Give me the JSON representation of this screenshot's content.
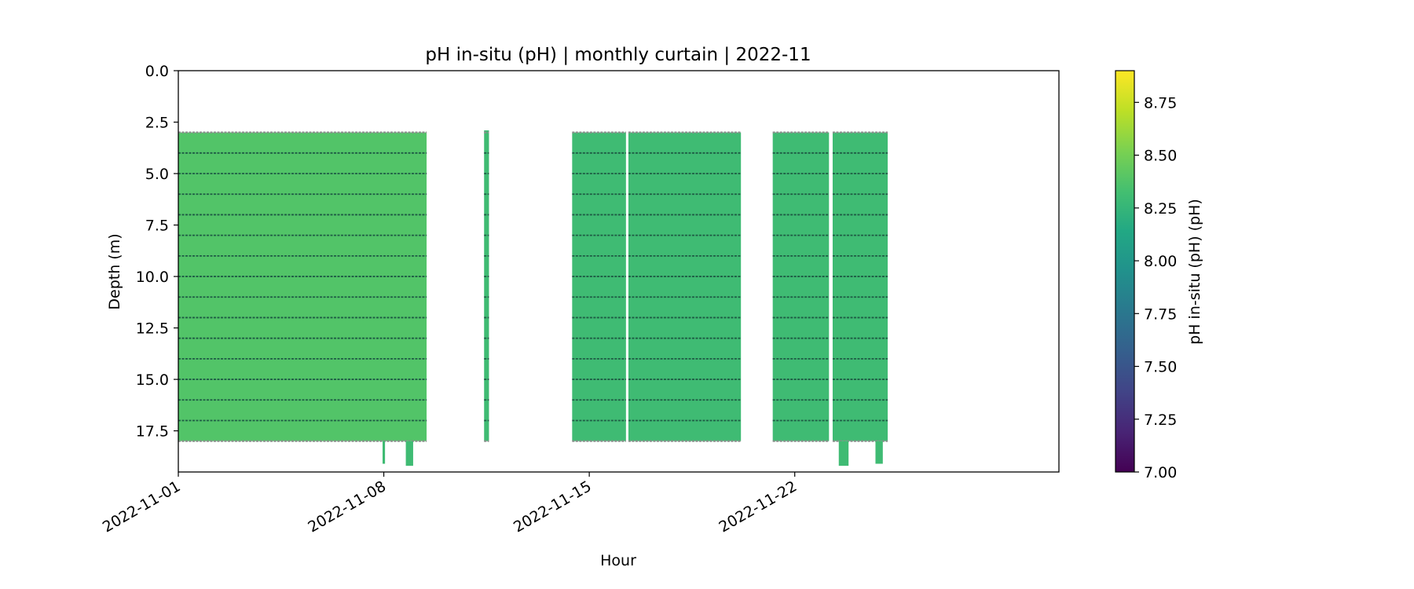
{
  "chart_data": {
    "type": "heatmap",
    "title": "pH in-situ (pH) | monthly curtain | 2022-11",
    "xlabel": "Hour",
    "ylabel": "Depth (m)",
    "x_axis": {
      "range": [
        "2022-11-01",
        "2022-12-01"
      ],
      "ticks": [
        "2022-11-01",
        "2022-11-08",
        "2022-11-15",
        "2022-11-22"
      ]
    },
    "y_axis": {
      "range": [
        0.0,
        19.5
      ],
      "inverted": true,
      "ticks": [
        "0.0",
        "2.5",
        "5.0",
        "7.5",
        "10.0",
        "12.5",
        "15.0",
        "17.5"
      ]
    },
    "colorbar": {
      "label": "pH in-situ (pH) (pH)",
      "colormap": "viridis",
      "range": [
        7.0,
        8.9
      ],
      "ticks": [
        "7.00",
        "7.25",
        "7.50",
        "7.75",
        "8.00",
        "8.25",
        "8.50",
        "8.75"
      ]
    },
    "sensor_depths_m": [
      3,
      4,
      5,
      6,
      7,
      8,
      9,
      10,
      11,
      12,
      13,
      14,
      15,
      16,
      17,
      18
    ],
    "blocks": [
      {
        "start": "2022-11-01T00:00",
        "end": "2022-11-09T11:00",
        "depth_top": 3.0,
        "depth_bottom": 18.0,
        "ph": 8.38
      },
      {
        "start": "2022-11-11T10:00",
        "end": "2022-11-11T14:00",
        "depth_top": 2.9,
        "depth_bottom": 18.0,
        "ph": 8.3
      },
      {
        "start": "2022-11-14T10:00",
        "end": "2022-11-16T06:00",
        "depth_top": 3.0,
        "depth_bottom": 18.0,
        "ph": 8.3
      },
      {
        "start": "2022-11-16T08:00",
        "end": "2022-11-20T04:00",
        "depth_top": 3.0,
        "depth_bottom": 18.0,
        "ph": 8.3
      },
      {
        "start": "2022-11-21T06:00",
        "end": "2022-11-23T04:00",
        "depth_top": 3.0,
        "depth_bottom": 18.0,
        "ph": 8.3
      },
      {
        "start": "2022-11-23T07:00",
        "end": "2022-11-25T04:00",
        "depth_top": 3.0,
        "depth_bottom": 18.0,
        "ph": 8.3
      },
      {
        "start": "2022-11-07T23:00",
        "end": "2022-11-08T01:00",
        "depth_top": 18.0,
        "depth_bottom": 19.1,
        "ph": 8.3
      },
      {
        "start": "2022-11-08T18:00",
        "end": "2022-11-09T00:00",
        "depth_top": 18.0,
        "depth_bottom": 19.2,
        "ph": 8.3
      },
      {
        "start": "2022-11-23T12:00",
        "end": "2022-11-23T20:00",
        "depth_top": 18.0,
        "depth_bottom": 19.2,
        "ph": 8.3
      },
      {
        "start": "2022-11-24T18:00",
        "end": "2022-11-25T00:00",
        "depth_top": 18.0,
        "depth_bottom": 19.1,
        "ph": 8.3
      }
    ]
  }
}
